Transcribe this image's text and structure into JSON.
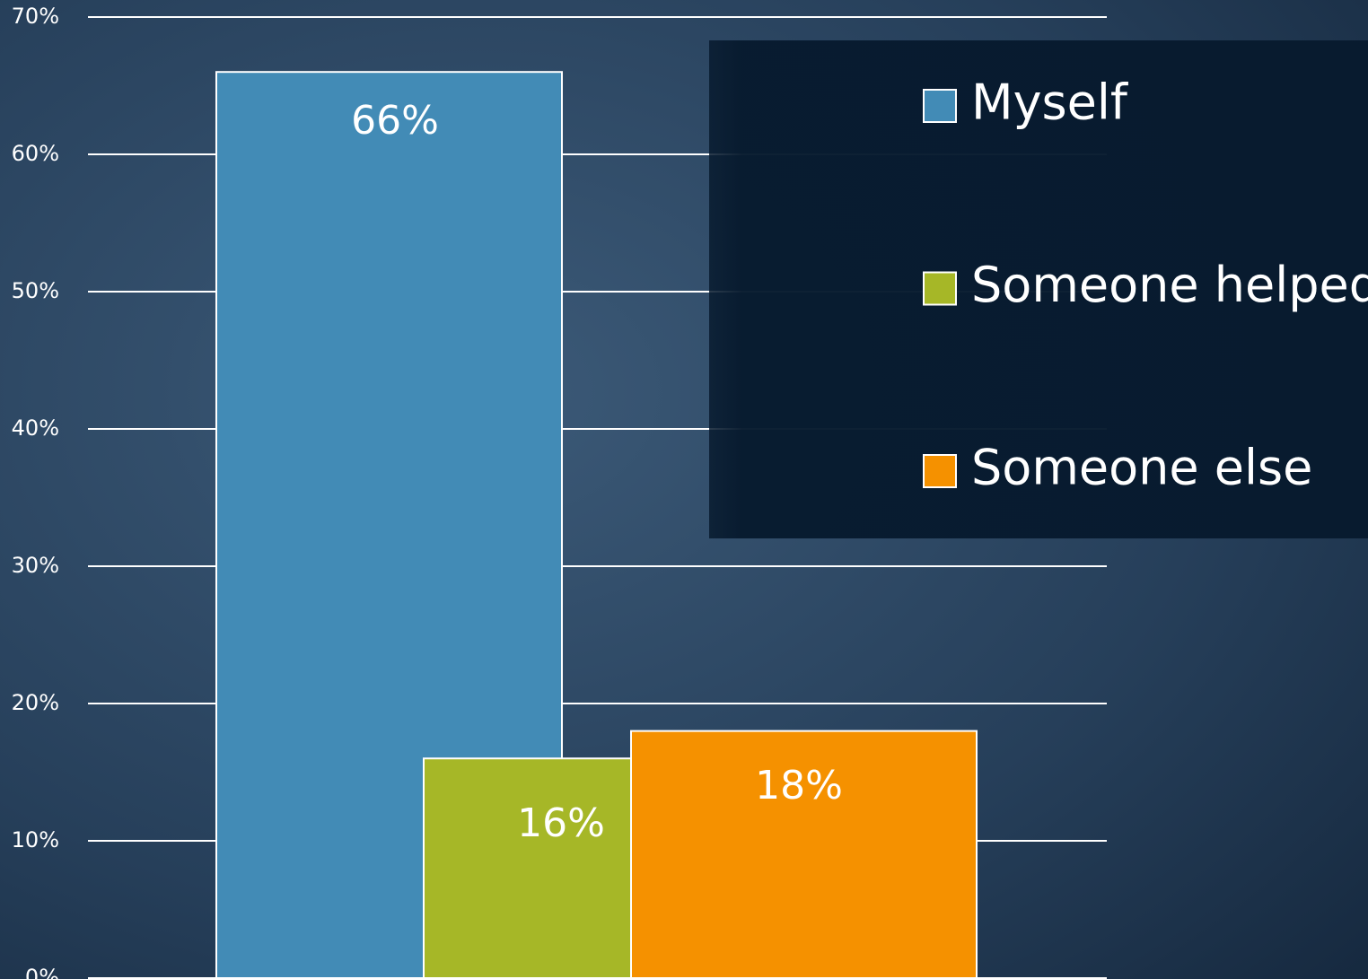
{
  "chart_data": {
    "type": "bar",
    "categories": [
      null
    ],
    "series": [
      {
        "name": "Myself",
        "color": "#428bb6",
        "values": [
          66
        ],
        "value_labels": [
          "66%"
        ]
      },
      {
        "name": "Someone helped",
        "color": "#a6b727",
        "values": [
          16
        ],
        "value_labels": [
          "16%"
        ]
      },
      {
        "name": "Someone else",
        "color": "#f59100",
        "values": [
          18
        ],
        "value_labels": [
          "18%"
        ]
      }
    ],
    "ylim": [
      0,
      70
    ],
    "yticks": [
      {
        "value": 0,
        "label": "0%"
      },
      {
        "value": 10,
        "label": "10%"
      },
      {
        "value": 20,
        "label": "20%"
      },
      {
        "value": 30,
        "label": "30%"
      },
      {
        "value": 40,
        "label": "40%"
      },
      {
        "value": 50,
        "label": "50%"
      },
      {
        "value": 60,
        "label": "60%"
      },
      {
        "value": 70,
        "label": "70%"
      }
    ],
    "grid": true,
    "legend": "right"
  }
}
